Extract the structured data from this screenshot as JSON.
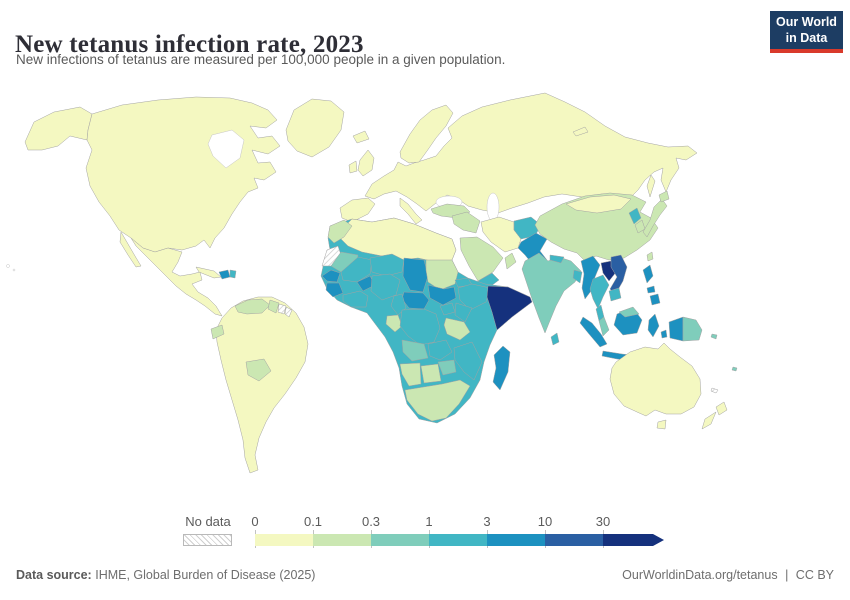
{
  "header": {
    "title": "New tetanus infection rate, 2023",
    "subtitle": "New infections of tetanus are measured per 100,000 people in a given population.",
    "logo": {
      "line1": "Our World",
      "line2": "in Data"
    }
  },
  "legend": {
    "no_data_label": "No data"
  },
  "footer": {
    "source_label": "Data source:",
    "source": "IHME, Global Burden of Disease (2025)",
    "link": "OurWorldinData.org/tetanus",
    "separator": "|",
    "license": "CC BY"
  },
  "colors": {
    "logo_bg": "#1d3d63",
    "logo_accent": "#d93a2b",
    "title_text": "#2e2e36",
    "muted_text": "#5b5b5b",
    "map_border": "#a3a3a3",
    "ocean": "#ffffff"
  },
  "chart_data": {
    "type": "choropleth",
    "title": "New tetanus infection rate",
    "year": "2023",
    "unit": "new infections per 100,000 people",
    "legend": {
      "ticks": [
        "0",
        "0.1",
        "0.3",
        "1",
        "3",
        "10",
        "30"
      ],
      "bins": [
        {
          "range": "0–0.1",
          "color": "#f4f8c1"
        },
        {
          "range": "0.1–0.3",
          "color": "#cbe7b2"
        },
        {
          "range": "0.3–1",
          "color": "#7fcdbb"
        },
        {
          "range": "1–3",
          "color": "#41b6c4"
        },
        {
          "range": "3–10",
          "color": "#1d91c0"
        },
        {
          "range": "10–30",
          "color": "#2a5fa3"
        },
        {
          "range": "30+",
          "color": "#15317d"
        }
      ],
      "no_data": {
        "label": "No data",
        "pattern": "diagonal-hatch"
      }
    },
    "regions": [
      {
        "name": "United States",
        "bin": "0–0.1"
      },
      {
        "name": "Canada",
        "bin": "0–0.1"
      },
      {
        "name": "Greenland",
        "bin": "0–0.1"
      },
      {
        "name": "Mexico",
        "bin": "0–0.1"
      },
      {
        "name": "Cuba",
        "bin": "0–0.1"
      },
      {
        "name": "Haiti",
        "bin": "3–10"
      },
      {
        "name": "Dominican Republic",
        "bin": "1–3"
      },
      {
        "name": "Brazil",
        "bin": "0–0.1"
      },
      {
        "name": "Colombia",
        "bin": "0–0.1"
      },
      {
        "name": "Peru",
        "bin": "0–0.1"
      },
      {
        "name": "Chile",
        "bin": "0–0.1"
      },
      {
        "name": "Argentina",
        "bin": "0–0.1"
      },
      {
        "name": "Paraguay",
        "bin": "0–0.1"
      },
      {
        "name": "Venezuela",
        "bin": "0.1–0.3"
      },
      {
        "name": "Ecuador",
        "bin": "0.1–0.3"
      },
      {
        "name": "Bolivia",
        "bin": "0.1–0.3"
      },
      {
        "name": "Guyana",
        "bin": "0.1–0.3"
      },
      {
        "name": "Suriname",
        "bin": "No data"
      },
      {
        "name": "French Guiana",
        "bin": "No data"
      },
      {
        "name": "United Kingdom",
        "bin": "0–0.1"
      },
      {
        "name": "Ireland",
        "bin": "0–0.1"
      },
      {
        "name": "Iceland",
        "bin": "0–0.1"
      },
      {
        "name": "France",
        "bin": "0–0.1"
      },
      {
        "name": "Spain",
        "bin": "0–0.1"
      },
      {
        "name": "Germany",
        "bin": "0–0.1"
      },
      {
        "name": "Italy",
        "bin": "0–0.1"
      },
      {
        "name": "Norway",
        "bin": "0–0.1"
      },
      {
        "name": "Sweden",
        "bin": "0–0.1"
      },
      {
        "name": "Poland",
        "bin": "0–0.1"
      },
      {
        "name": "Ukraine",
        "bin": "0–0.1"
      },
      {
        "name": "Russia",
        "bin": "0–0.1"
      },
      {
        "name": "Kazakhstan",
        "bin": "0–0.1"
      },
      {
        "name": "Mongolia",
        "bin": "0–0.1"
      },
      {
        "name": "Iran",
        "bin": "0–0.1"
      },
      {
        "name": "Turkey",
        "bin": "0.1–0.3"
      },
      {
        "name": "Syria",
        "bin": "0.1–0.3"
      },
      {
        "name": "Iraq",
        "bin": "0.1–0.3"
      },
      {
        "name": "Saudi Arabia",
        "bin": "0.1–0.3"
      },
      {
        "name": "Oman",
        "bin": "0.1–0.3"
      },
      {
        "name": "Yemen",
        "bin": "1–3"
      },
      {
        "name": "Afghanistan",
        "bin": "1–3"
      },
      {
        "name": "Pakistan",
        "bin": "3–10"
      },
      {
        "name": "India",
        "bin": "0.3–1"
      },
      {
        "name": "Nepal",
        "bin": "1–3"
      },
      {
        "name": "Bangladesh",
        "bin": "1–3"
      },
      {
        "name": "Sri Lanka",
        "bin": "1–3"
      },
      {
        "name": "China",
        "bin": "0.1–0.3"
      },
      {
        "name": "North Korea",
        "bin": "1–3"
      },
      {
        "name": "South Korea",
        "bin": "0.1–0.3"
      },
      {
        "name": "Japan",
        "bin": "0.1–0.3"
      },
      {
        "name": "Taiwan",
        "bin": "0.1–0.3"
      },
      {
        "name": "Myanmar",
        "bin": "3–10"
      },
      {
        "name": "Thailand",
        "bin": "1–3"
      },
      {
        "name": "Laos",
        "bin": "30+"
      },
      {
        "name": "Vietnam",
        "bin": "10–30"
      },
      {
        "name": "Cambodia",
        "bin": "1–3"
      },
      {
        "name": "Malaysia",
        "bin": "0.3–1"
      },
      {
        "name": "Indonesia",
        "bin": "3–10"
      },
      {
        "name": "Philippines",
        "bin": "3–10"
      },
      {
        "name": "Papua New Guinea",
        "bin": "0.3–1"
      },
      {
        "name": "Solomon Islands",
        "bin": "0.3–1"
      },
      {
        "name": "Fiji",
        "bin": "0.3–1"
      },
      {
        "name": "New Caledonia",
        "bin": "No data"
      },
      {
        "name": "Australia",
        "bin": "0–0.1"
      },
      {
        "name": "New Zealand",
        "bin": "0–0.1"
      },
      {
        "name": "Morocco",
        "bin": "0.1–0.3"
      },
      {
        "name": "Algeria",
        "bin": "0–0.1"
      },
      {
        "name": "Tunisia",
        "bin": "0–0.1"
      },
      {
        "name": "Libya",
        "bin": "0–0.1"
      },
      {
        "name": "Egypt",
        "bin": "0–0.1"
      },
      {
        "name": "Western Sahara",
        "bin": "No data"
      },
      {
        "name": "Mauritania",
        "bin": "0.3–1"
      },
      {
        "name": "Senegal",
        "bin": "3–10"
      },
      {
        "name": "Guinea",
        "bin": "3–10"
      },
      {
        "name": "Sierra Leone",
        "bin": "3–10"
      },
      {
        "name": "Liberia",
        "bin": "3–10"
      },
      {
        "name": "Mali",
        "bin": "1–3"
      },
      {
        "name": "Burkina Faso",
        "bin": "3–10"
      },
      {
        "name": "Côte d'Ivoire",
        "bin": "1–3"
      },
      {
        "name": "Ghana",
        "bin": "1–3"
      },
      {
        "name": "Niger",
        "bin": "1–3"
      },
      {
        "name": "Nigeria",
        "bin": "1–3"
      },
      {
        "name": "Chad",
        "bin": "3–10"
      },
      {
        "name": "Sudan",
        "bin": "0.1–0.3"
      },
      {
        "name": "Eritrea",
        "bin": "1–3"
      },
      {
        "name": "Ethiopia",
        "bin": "1–3"
      },
      {
        "name": "Somalia",
        "bin": "30+"
      },
      {
        "name": "South Sudan",
        "bin": "3–10"
      },
      {
        "name": "Central African Republic",
        "bin": "3–10"
      },
      {
        "name": "Cameroon",
        "bin": "1–3"
      },
      {
        "name": "Gabon",
        "bin": "0.1–0.3"
      },
      {
        "name": "Republic of Congo",
        "bin": "0.1–0.3"
      },
      {
        "name": "Democratic Republic of Congo",
        "bin": "1–3"
      },
      {
        "name": "Uganda",
        "bin": "1–3"
      },
      {
        "name": "Kenya",
        "bin": "1–3"
      },
      {
        "name": "Tanzania",
        "bin": "0.1–0.3"
      },
      {
        "name": "Angola",
        "bin": "0.3–1"
      },
      {
        "name": "Zambia",
        "bin": "1–3"
      },
      {
        "name": "Zimbabwe",
        "bin": "0.3–1"
      },
      {
        "name": "Mozambique",
        "bin": "1–3"
      },
      {
        "name": "Namibia",
        "bin": "0.1–0.3"
      },
      {
        "name": "Botswana",
        "bin": "0.1–0.3"
      },
      {
        "name": "South Africa",
        "bin": "0.1–0.3"
      },
      {
        "name": "Madagascar",
        "bin": "3–10"
      }
    ]
  }
}
